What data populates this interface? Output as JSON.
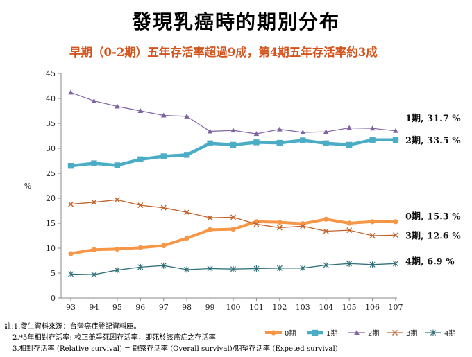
{
  "title": "發現乳癌時的期別分布",
  "subtitle": "早期（0-2期）五年存活率超過9成，第4期五年存活率約3成",
  "notes": [
    "註:1.發生資料來源：台灣癌症登記資料庫。",
    "2.*5年相對存活率: 校正競爭死因存活率，即死於該癌症之存活率",
    "3.相對存活率 (Relative survival) = 觀察存活率 (Overall survival)/期望存活率 (Expeted survival)"
  ],
  "chart_data": {
    "type": "line",
    "title": "",
    "xlabel": "",
    "ylabel": "%",
    "ylim": [
      0,
      45
    ],
    "yticks": [
      0,
      5,
      10,
      15,
      20,
      25,
      30,
      35,
      40,
      45
    ],
    "categories": [
      "93",
      "94",
      "95",
      "96",
      "97",
      "98",
      "99",
      "100",
      "101",
      "102",
      "103",
      "104",
      "105",
      "106",
      "107"
    ],
    "grid": false,
    "legend_position": "bottom-right",
    "series": [
      {
        "name": "0期",
        "color": "#f79646",
        "marker": "circle",
        "values": [
          8.9,
          9.7,
          9.8,
          10.1,
          10.5,
          12.0,
          13.7,
          13.8,
          15.3,
          15.2,
          14.9,
          15.8,
          15.0,
          15.3,
          15.3
        ]
      },
      {
        "name": "1期",
        "color": "#4bacc6",
        "marker": "square",
        "values": [
          26.5,
          27.0,
          26.6,
          27.8,
          28.4,
          28.7,
          31.0,
          30.7,
          31.2,
          31.1,
          31.6,
          31.0,
          30.7,
          31.7,
          31.7
        ]
      },
      {
        "name": "2期",
        "color": "#8064a2",
        "marker": "triangle",
        "values": [
          41.2,
          39.5,
          38.4,
          37.5,
          36.6,
          36.4,
          33.4,
          33.6,
          32.9,
          33.8,
          33.2,
          33.3,
          34.1,
          34.0,
          33.5
        ]
      },
      {
        "name": "3期",
        "color": "#c0622b",
        "marker": "x",
        "values": [
          18.8,
          19.2,
          19.7,
          18.6,
          18.1,
          17.2,
          16.1,
          16.2,
          14.8,
          14.1,
          14.4,
          13.4,
          13.6,
          12.5,
          12.6
        ]
      },
      {
        "name": "4期",
        "color": "#31707a",
        "marker": "star",
        "values": [
          4.8,
          4.7,
          5.6,
          6.2,
          6.5,
          5.7,
          5.9,
          5.8,
          5.9,
          6.0,
          6.0,
          6.6,
          6.9,
          6.7,
          6.9
        ]
      }
    ],
    "annotations": [
      {
        "text": "1期, 31.7 %",
        "value": 36.0
      },
      {
        "text": "2期, 33.5 %",
        "value": 31.5
      },
      {
        "text": "0期, 15.3 %",
        "value": 16.3
      },
      {
        "text": "3期, 12.6 %",
        "value": 12.4
      },
      {
        "text": "4期, 6.9 %",
        "value": 7.3
      }
    ]
  }
}
